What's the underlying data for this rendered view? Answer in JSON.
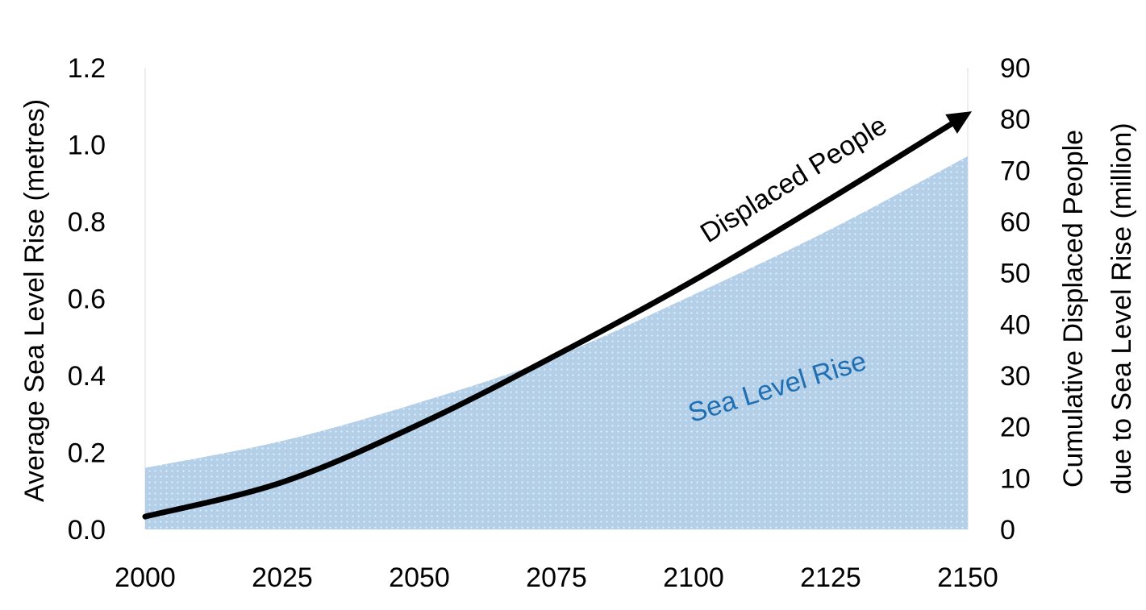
{
  "chart_data": {
    "type": "area",
    "title": "",
    "x": [
      2000,
      2025,
      2050,
      2075,
      2100,
      2125,
      2150
    ],
    "xlim": [
      2000,
      2150
    ],
    "x_ticks": [
      "2000",
      "2025",
      "2050",
      "2075",
      "2100",
      "2125",
      "2150"
    ],
    "y_left": {
      "label": "Average Sea Level Rise (metres)",
      "lim": [
        0,
        1.2
      ],
      "ticks": [
        "0.0",
        "0.2",
        "0.4",
        "0.6",
        "0.8",
        "1.0",
        "1.2"
      ]
    },
    "y_right": {
      "label_line1": "Cumulative Displaced People",
      "label_line2": "due to Sea Level Rise (million)",
      "lim": [
        0,
        90
      ],
      "ticks": [
        "0",
        "10",
        "20",
        "30",
        "40",
        "50",
        "60",
        "70",
        "80",
        "90"
      ]
    },
    "series": [
      {
        "name": "Sea Level Rise",
        "kind": "area",
        "axis": "left",
        "color": "#b4cfe8",
        "label_color": "#1f6fb2",
        "values": [
          0.16,
          0.23,
          0.33,
          0.45,
          0.61,
          0.78,
          0.97
        ]
      },
      {
        "name": "Displaced People",
        "kind": "arrow-line",
        "axis": "right",
        "color": "#000000",
        "values": [
          2.5,
          9.2,
          20.5,
          34.0,
          48.5,
          64.5,
          81.0
        ]
      }
    ],
    "grid": false,
    "legend": "none"
  }
}
